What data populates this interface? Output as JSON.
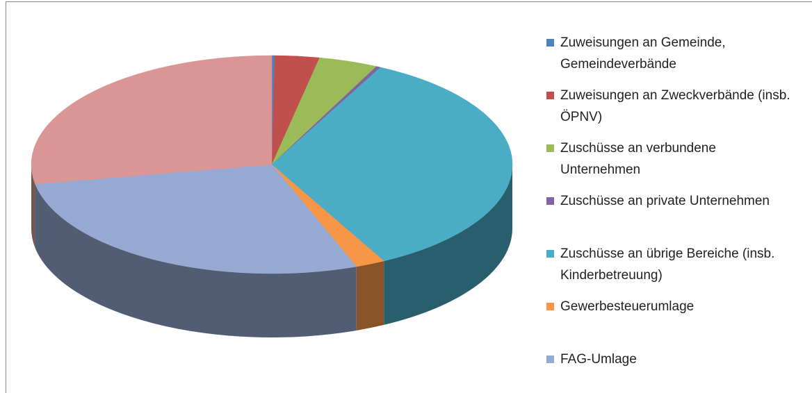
{
  "chart_data": {
    "type": "pie3d",
    "categories": [
      "Zuweisungen an Gemeinde, Gemeindeverbände",
      "Zuweisungen an Zweckverbände (insb. ÖPNV)",
      "Zuschüsse an verbundene Unternehmen",
      "Zuschüsse an private Unternehmen",
      "Zuschüsse an übrige Bereiche (insb. Kinderbetreuung)",
      "Gewerbesteuerumlage",
      "FAG-Umlage",
      null
    ],
    "values": [
      0.2,
      3,
      4,
      0.3,
      35,
      2,
      28,
      28
    ],
    "colors": [
      "#4f81bd",
      "#c0504d",
      "#9bbb59",
      "#8064a2",
      "#4bacc6",
      "#f79646",
      "#95a9d3",
      "#d99694"
    ]
  }
}
